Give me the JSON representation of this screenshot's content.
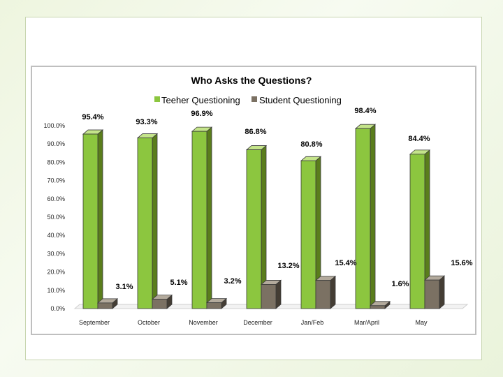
{
  "colors": {
    "teacher_front": "#8cc63f",
    "teacher_side": "#5a7d1c",
    "teacher_top": "#c4e48a",
    "student_front": "#7b7163",
    "student_side": "#443d34",
    "student_top": "#b3aa9c",
    "outline": "#3a3a3a"
  },
  "chart_data": {
    "type": "bar",
    "title": "Who Asks the Questions?",
    "legend_position": "top",
    "categories": [
      "September",
      "October",
      "November",
      "December",
      "Jan/Feb",
      "Mar/April",
      "May"
    ],
    "series": [
      {
        "name": "Teeher Questioning",
        "values": [
          95.4,
          93.3,
          96.9,
          86.8,
          80.8,
          98.4,
          84.4
        ],
        "labels": [
          "95.4%",
          "93.3%",
          "96.9%",
          "86.8%",
          "80.8%",
          "98.4%",
          "84.4%"
        ]
      },
      {
        "name": "Student Questioning",
        "values": [
          3.1,
          5.1,
          3.2,
          13.2,
          15.4,
          1.6,
          15.6
        ],
        "labels": [
          "3.1%",
          "5.1%",
          "3.2%",
          "13.2%",
          "15.4%",
          "1.6%",
          "15.6%"
        ]
      }
    ],
    "y_ticks": [
      "0.0%",
      "10.0%",
      "20.0%",
      "30.0%",
      "40.0%",
      "50.0%",
      "60.0%",
      "70.0%",
      "80.0%",
      "90.0%",
      "100.0%"
    ],
    "ylim": [
      0,
      100
    ],
    "grid": false
  }
}
